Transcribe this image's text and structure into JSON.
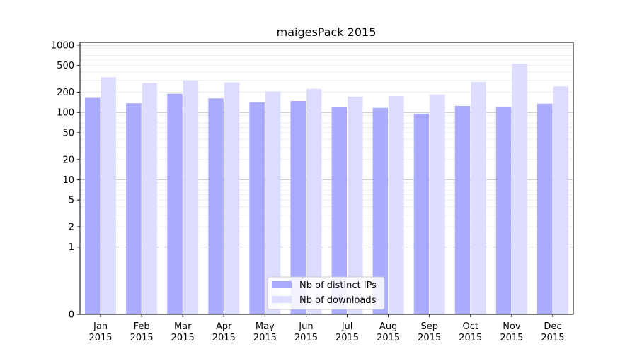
{
  "chart_data": {
    "type": "bar",
    "title": "maigesPack 2015",
    "xlabel": "",
    "ylabel": "",
    "y_scale": "symlog",
    "ylim": [
      0,
      1100
    ],
    "y_ticks": [
      0,
      1,
      2,
      5,
      10,
      20,
      50,
      100,
      200,
      500,
      1000
    ],
    "categories": [
      [
        "Jan",
        "2015"
      ],
      [
        "Feb",
        "2015"
      ],
      [
        "Mar",
        "2015"
      ],
      [
        "Apr",
        "2015"
      ],
      [
        "May",
        "2015"
      ],
      [
        "Jun",
        "2015"
      ],
      [
        "Jul",
        "2015"
      ],
      [
        "Aug",
        "2015"
      ],
      [
        "Sep",
        "2015"
      ],
      [
        "Oct",
        "2015"
      ],
      [
        "Nov",
        "2015"
      ],
      [
        "Dec",
        "2015"
      ]
    ],
    "series": [
      {
        "name": "Nb of distinct IPs",
        "color": "#aaaaff",
        "values": [
          165,
          137,
          190,
          162,
          142,
          148,
          119,
          117,
          96,
          125,
          120,
          135
        ]
      },
      {
        "name": "Nb of downloads",
        "color": "#ddddff",
        "values": [
          335,
          275,
          300,
          280,
          205,
          225,
          172,
          175,
          185,
          285,
          530,
          245
        ]
      }
    ],
    "grid": true,
    "legend_position": "lower-center"
  }
}
